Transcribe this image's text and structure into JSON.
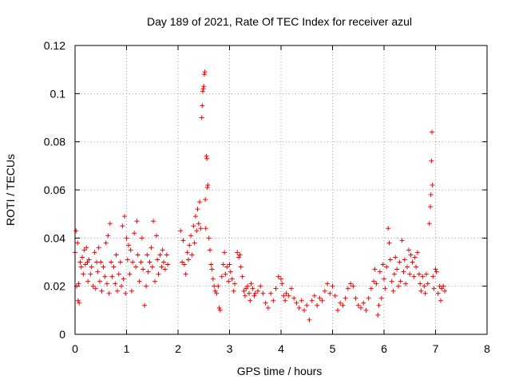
{
  "chart_data": {
    "type": "scatter",
    "title": "Day 189 of 2021, Rate Of TEC Index for receiver azul",
    "xlabel": "GPS time / hours",
    "ylabel": "ROTI / TECUs",
    "xlim": [
      0,
      8
    ],
    "ylim": [
      0,
      0.12
    ],
    "xticks": [
      0,
      1,
      2,
      3,
      4,
      5,
      6,
      7,
      8
    ],
    "xtick_labels": [
      "0",
      "1",
      "2",
      "3",
      "4",
      "5",
      "6",
      "7",
      "8"
    ],
    "yticks": [
      0,
      0.02,
      0.04,
      0.06,
      0.08,
      0.1,
      0.12
    ],
    "ytick_labels": [
      "0",
      "0.02",
      "0.04",
      "0.06",
      "0.08",
      "0.1",
      "0.12"
    ],
    "grid": true,
    "marker": "plus",
    "color": "#ff0000",
    "series": [
      {
        "name": "ROTI",
        "points": [
          [
            0.0,
            0.034
          ],
          [
            0.02,
            0.043
          ],
          [
            0.03,
            0.02
          ],
          [
            0.05,
            0.038
          ],
          [
            0.06,
            0.014
          ],
          [
            0.07,
            0.021
          ],
          [
            0.08,
            0.013
          ],
          [
            0.1,
            0.03
          ],
          [
            0.12,
            0.028
          ],
          [
            0.14,
            0.032
          ],
          [
            0.16,
            0.025
          ],
          [
            0.18,
            0.035
          ],
          [
            0.2,
            0.029
          ],
          [
            0.22,
            0.036
          ],
          [
            0.24,
            0.03
          ],
          [
            0.25,
            0.022
          ],
          [
            0.27,
            0.031
          ],
          [
            0.3,
            0.025
          ],
          [
            0.32,
            0.028
          ],
          [
            0.35,
            0.02
          ],
          [
            0.38,
            0.034
          ],
          [
            0.4,
            0.019
          ],
          [
            0.42,
            0.03
          ],
          [
            0.44,
            0.026
          ],
          [
            0.46,
            0.036
          ],
          [
            0.48,
            0.022
          ],
          [
            0.5,
            0.03
          ],
          [
            0.52,
            0.018
          ],
          [
            0.55,
            0.028
          ],
          [
            0.58,
            0.024
          ],
          [
            0.6,
            0.038
          ],
          [
            0.62,
            0.021
          ],
          [
            0.64,
            0.041
          ],
          [
            0.66,
            0.017
          ],
          [
            0.68,
            0.046
          ],
          [
            0.7,
            0.03
          ],
          [
            0.72,
            0.024
          ],
          [
            0.75,
            0.028
          ],
          [
            0.78,
            0.021
          ],
          [
            0.8,
            0.033
          ],
          [
            0.82,
            0.018
          ],
          [
            0.85,
            0.025
          ],
          [
            0.88,
            0.03
          ],
          [
            0.9,
            0.02
          ],
          [
            0.92,
            0.045
          ],
          [
            0.94,
            0.023
          ],
          [
            0.96,
            0.049
          ],
          [
            0.98,
            0.017
          ],
          [
            1.0,
            0.04
          ],
          [
            1.02,
            0.031
          ],
          [
            1.04,
            0.037
          ],
          [
            1.06,
            0.025
          ],
          [
            1.08,
            0.035
          ],
          [
            1.1,
            0.018
          ],
          [
            1.12,
            0.03
          ],
          [
            1.15,
            0.042
          ],
          [
            1.18,
            0.028
          ],
          [
            1.2,
            0.047
          ],
          [
            1.22,
            0.033
          ],
          [
            1.25,
            0.022
          ],
          [
            1.28,
            0.03
          ],
          [
            1.3,
            0.04
          ],
          [
            1.32,
            0.027
          ],
          [
            1.35,
            0.012
          ],
          [
            1.38,
            0.02
          ],
          [
            1.4,
            0.033
          ],
          [
            1.42,
            0.026
          ],
          [
            1.45,
            0.03
          ],
          [
            1.48,
            0.036
          ],
          [
            1.5,
            0.028
          ],
          [
            1.52,
            0.047
          ],
          [
            1.55,
            0.022
          ],
          [
            1.58,
            0.041
          ],
          [
            1.6,
            0.031
          ],
          [
            1.62,
            0.025
          ],
          [
            1.65,
            0.033
          ],
          [
            1.68,
            0.028
          ],
          [
            1.7,
            0.035
          ],
          [
            1.72,
            0.03
          ],
          [
            1.75,
            0.027
          ],
          [
            1.78,
            0.033
          ],
          [
            1.8,
            0.029
          ],
          [
            2.05,
            0.043
          ],
          [
            2.08,
            0.03
          ],
          [
            2.1,
            0.039
          ],
          [
            2.12,
            0.029
          ],
          [
            2.15,
            0.025
          ],
          [
            2.18,
            0.034
          ],
          [
            2.2,
            0.031
          ],
          [
            2.22,
            0.037
          ],
          [
            2.25,
            0.041
          ],
          [
            2.27,
            0.033
          ],
          [
            2.3,
            0.045
          ],
          [
            2.32,
            0.038
          ],
          [
            2.34,
            0.049
          ],
          [
            2.36,
            0.043
          ],
          [
            2.38,
            0.052
          ],
          [
            2.4,
            0.046
          ],
          [
            2.42,
            0.055
          ],
          [
            2.44,
            0.044
          ],
          [
            2.46,
            0.09
          ],
          [
            2.47,
            0.095
          ],
          [
            2.48,
            0.101
          ],
          [
            2.49,
            0.102
          ],
          [
            2.5,
            0.103
          ],
          [
            2.51,
            0.108
          ],
          [
            2.52,
            0.109
          ],
          [
            2.53,
            0.056
          ],
          [
            2.54,
            0.044
          ],
          [
            2.55,
            0.074
          ],
          [
            2.56,
            0.073
          ],
          [
            2.57,
            0.061
          ],
          [
            2.58,
            0.062
          ],
          [
            2.6,
            0.04
          ],
          [
            2.62,
            0.035
          ],
          [
            2.64,
            0.029
          ],
          [
            2.66,
            0.027
          ],
          [
            2.68,
            0.023
          ],
          [
            2.7,
            0.02
          ],
          [
            2.72,
            0.018
          ],
          [
            2.75,
            0.017
          ],
          [
            2.78,
            0.02
          ],
          [
            2.8,
            0.011
          ],
          [
            2.82,
            0.01
          ],
          [
            2.85,
            0.024
          ],
          [
            2.88,
            0.029
          ],
          [
            2.9,
            0.034
          ],
          [
            2.92,
            0.025
          ],
          [
            2.95,
            0.028
          ],
          [
            2.98,
            0.022
          ],
          [
            3.0,
            0.029
          ],
          [
            3.02,
            0.026
          ],
          [
            3.05,
            0.023
          ],
          [
            3.08,
            0.018
          ],
          [
            3.1,
            0.021
          ],
          [
            3.15,
            0.034
          ],
          [
            3.18,
            0.032
          ],
          [
            3.2,
            0.033
          ],
          [
            3.22,
            0.028
          ],
          [
            3.25,
            0.024
          ],
          [
            3.28,
            0.018
          ],
          [
            3.3,
            0.016
          ],
          [
            3.32,
            0.019
          ],
          [
            3.35,
            0.02
          ],
          [
            3.38,
            0.017
          ],
          [
            3.4,
            0.014
          ],
          [
            3.42,
            0.021
          ],
          [
            3.45,
            0.019
          ],
          [
            3.48,
            0.016
          ],
          [
            3.5,
            0.017
          ],
          [
            3.55,
            0.018
          ],
          [
            3.6,
            0.02
          ],
          [
            3.65,
            0.017
          ],
          [
            3.7,
            0.013
          ],
          [
            3.75,
            0.011
          ],
          [
            3.8,
            0.017
          ],
          [
            3.85,
            0.014
          ],
          [
            3.9,
            0.019
          ],
          [
            3.95,
            0.024
          ],
          [
            4.0,
            0.023
          ],
          [
            4.02,
            0.021
          ],
          [
            4.05,
            0.016
          ],
          [
            4.08,
            0.014
          ],
          [
            4.1,
            0.017
          ],
          [
            4.15,
            0.016
          ],
          [
            4.2,
            0.019
          ],
          [
            4.25,
            0.015
          ],
          [
            4.3,
            0.013
          ],
          [
            4.35,
            0.011
          ],
          [
            4.4,
            0.014
          ],
          [
            4.45,
            0.01
          ],
          [
            4.5,
            0.012
          ],
          [
            4.55,
            0.006
          ],
          [
            4.6,
            0.014
          ],
          [
            4.65,
            0.016
          ],
          [
            4.7,
            0.012
          ],
          [
            4.75,
            0.015
          ],
          [
            4.8,
            0.014
          ],
          [
            4.85,
            0.018
          ],
          [
            4.9,
            0.021
          ],
          [
            4.95,
            0.017
          ],
          [
            5.0,
            0.02
          ],
          [
            5.05,
            0.016
          ],
          [
            5.1,
            0.01
          ],
          [
            5.15,
            0.013
          ],
          [
            5.2,
            0.012
          ],
          [
            5.25,
            0.015
          ],
          [
            5.3,
            0.019
          ],
          [
            5.35,
            0.021
          ],
          [
            5.4,
            0.02
          ],
          [
            5.45,
            0.015
          ],
          [
            5.5,
            0.012
          ],
          [
            5.55,
            0.011
          ],
          [
            5.6,
            0.013
          ],
          [
            5.65,
            0.01
          ],
          [
            5.7,
            0.015
          ],
          [
            5.75,
            0.019
          ],
          [
            5.8,
            0.022
          ],
          [
            5.82,
            0.027
          ],
          [
            5.85,
            0.021
          ],
          [
            5.88,
            0.008
          ],
          [
            5.9,
            0.012
          ],
          [
            5.92,
            0.026
          ],
          [
            5.95,
            0.015
          ],
          [
            5.98,
            0.029
          ],
          [
            6.0,
            0.023
          ],
          [
            6.02,
            0.019
          ],
          [
            6.05,
            0.028
          ],
          [
            6.08,
            0.044
          ],
          [
            6.1,
            0.038
          ],
          [
            6.12,
            0.031
          ],
          [
            6.15,
            0.022
          ],
          [
            6.18,
            0.018
          ],
          [
            6.2,
            0.025
          ],
          [
            6.22,
            0.032
          ],
          [
            6.25,
            0.027
          ],
          [
            6.28,
            0.02
          ],
          [
            6.3,
            0.03
          ],
          [
            6.32,
            0.022
          ],
          [
            6.35,
            0.039
          ],
          [
            6.38,
            0.026
          ],
          [
            6.4,
            0.031
          ],
          [
            6.42,
            0.021
          ],
          [
            6.45,
            0.028
          ],
          [
            6.48,
            0.035
          ],
          [
            6.5,
            0.025
          ],
          [
            6.52,
            0.033
          ],
          [
            6.55,
            0.03
          ],
          [
            6.58,
            0.024
          ],
          [
            6.6,
            0.032
          ],
          [
            6.62,
            0.028
          ],
          [
            6.65,
            0.034
          ],
          [
            6.68,
            0.025
          ],
          [
            6.7,
            0.021
          ],
          [
            6.72,
            0.018
          ],
          [
            6.75,
            0.024
          ],
          [
            6.78,
            0.02
          ],
          [
            6.8,
            0.017
          ],
          [
            6.82,
            0.025
          ],
          [
            6.85,
            0.021
          ],
          [
            6.88,
            0.046
          ],
          [
            6.9,
            0.053
          ],
          [
            6.91,
            0.058
          ],
          [
            6.92,
            0.072
          ],
          [
            6.93,
            0.084
          ],
          [
            6.94,
            0.062
          ],
          [
            6.95,
            0.024
          ],
          [
            6.97,
            0.019
          ],
          [
            7.0,
            0.027
          ],
          [
            7.02,
            0.026
          ],
          [
            7.05,
            0.017
          ],
          [
            7.08,
            0.02
          ],
          [
            7.1,
            0.014
          ],
          [
            7.12,
            0.019
          ],
          [
            7.15,
            0.02
          ],
          [
            7.18,
            0.018
          ]
        ]
      }
    ]
  }
}
